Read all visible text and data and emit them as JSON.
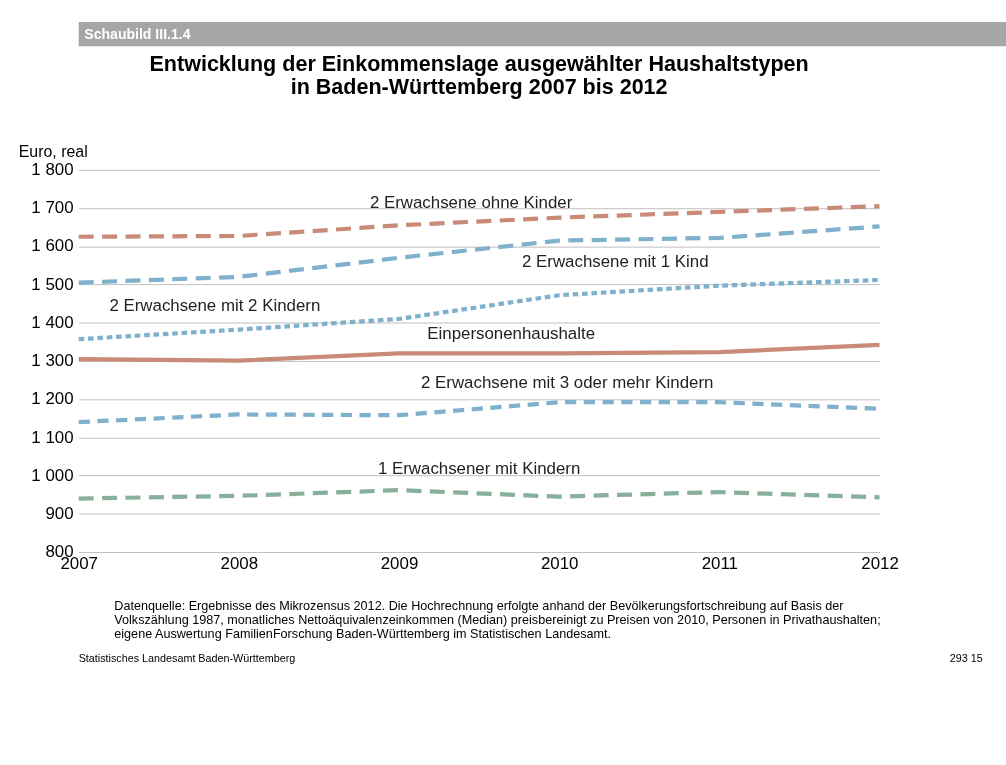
{
  "chart_data": {
    "type": "line",
    "title": "Entwicklung der Einkommenslage ausgewählter Haushaltstypen\nin Baden-Württemberg 2007 bis 2012",
    "ylabel": "Euro, real",
    "x": [
      2007,
      2008,
      2009,
      2010,
      2011,
      2012
    ],
    "series": [
      {
        "name": "2 Erwachsene ohne Kinder",
        "color": "#c98a78",
        "line_style": "dashed",
        "values": [
          1625,
          1627,
          1655,
          1675,
          1690,
          1705
        ]
      },
      {
        "name": "2 Erwachsene mit 1 Kind",
        "color": "#7fb0cc",
        "line_style": "dashed",
        "values": [
          1505,
          1520,
          1570,
          1615,
          1622,
          1652
        ]
      },
      {
        "name": "2 Erwachsene mit 2 Kindern",
        "color": "#7fb0cc",
        "line_style": "dotted",
        "values": [
          1357,
          1382,
          1410,
          1472,
          1497,
          1512
        ]
      },
      {
        "name": "Einpersonenhaushalte",
        "color": "#c98a78",
        "line_style": "solid",
        "values": [
          1305,
          1301,
          1320,
          1320,
          1323,
          1342
        ]
      },
      {
        "name": "2 Erwachsene mit 3 oder mehr Kindern",
        "color": "#7fb0cc",
        "line_style": "dashed",
        "values": [
          1140,
          1160,
          1158,
          1192,
          1192,
          1175
        ]
      },
      {
        "name": "1 Erwachsener mit Kindern",
        "color": "#87b09a",
        "line_style": "dashed",
        "values": [
          940,
          947,
          962,
          945,
          957,
          943
        ]
      }
    ],
    "xlim": [
      2007,
      2012
    ],
    "xticks": [
      2007,
      2008,
      2009,
      2010,
      2011,
      2012
    ],
    "ylim": [
      800,
      1800
    ],
    "yticks": [
      800,
      900,
      {
        "value": 1000,
        "label": "1 000"
      },
      {
        "value": 1100,
        "label": "1 100"
      },
      {
        "value": 1200,
        "label": "1 200"
      },
      {
        "value": 1300,
        "label": "1 300"
      },
      {
        "value": 1400,
        "label": "1 400"
      },
      {
        "value": 1500,
        "label": "1 500"
      },
      {
        "value": 1600,
        "label": "1 600"
      },
      {
        "value": 1700,
        "label": "1 700"
      },
      {
        "value": 1800,
        "label": "1 800"
      }
    ],
    "grid": "y",
    "marker": "none",
    "annotations": [
      "Schaubild III.1.4",
      "Datenquelle: Ergebnisse des Mikrozensus 2012. Die Hochrechnung erfolgte anhand der Bevölkerungsfortschreibung auf Basis der\nVolkszählung 1987, monatliches Nettoäquivalenzeinkommen (Median) preisbereinigt zu Preisen von 2010, Personen in Privathaushalten;\neigene Auswertung FamilienForschung Baden-Württemberg im Statistischen Landesamt.",
      "Statistisches Landesamt Baden-Württemberg",
      "293 15"
    ]
  }
}
